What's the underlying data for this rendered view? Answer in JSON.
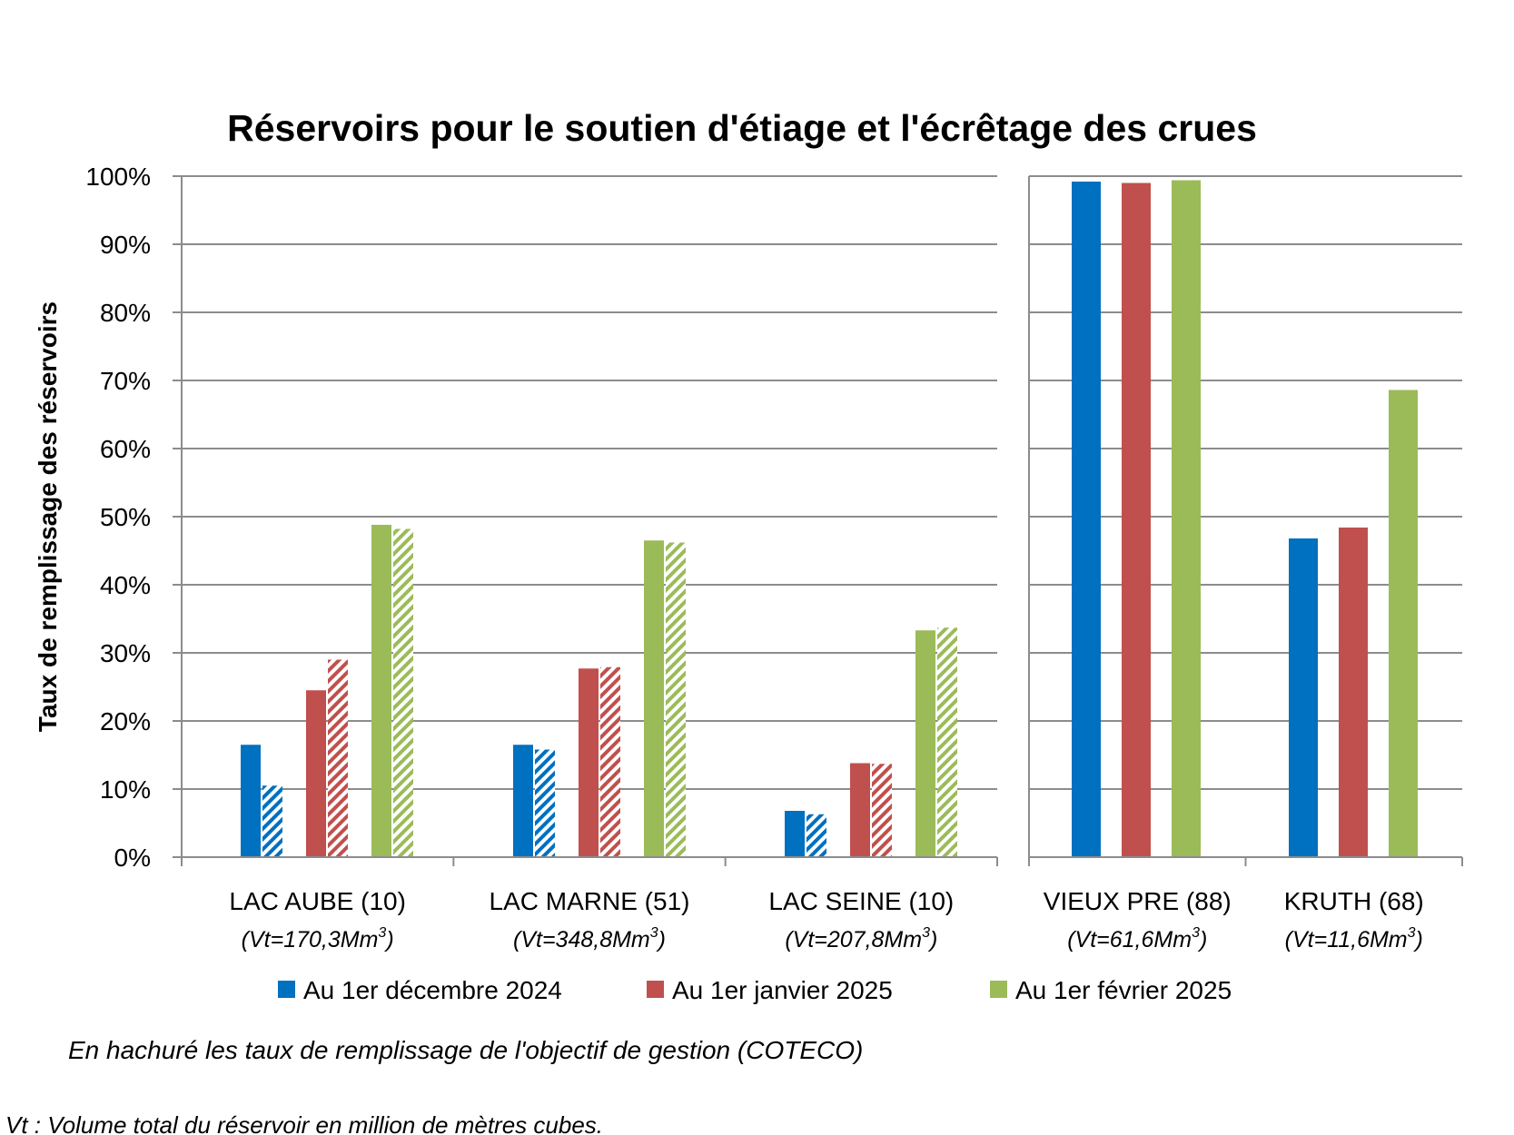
{
  "chart_data": {
    "type": "bar",
    "title": "Réservoirs pour le soutien d'étiage et l'écrêtage des crues",
    "ylabel": "Taux de remplissage des réservoirs",
    "ylim": [
      0,
      100
    ],
    "yticks": [
      "0%",
      "10%",
      "20%",
      "30%",
      "40%",
      "50%",
      "60%",
      "70%",
      "80%",
      "90%",
      "100%"
    ],
    "grid": true,
    "legend_position": "bottom",
    "series": [
      {
        "name": "Au 1er décembre 2024",
        "color": "#0070c0"
      },
      {
        "name": "Au 1er janvier 2025",
        "color": "#c0504d"
      },
      {
        "name": "Au 1er février 2025",
        "color": "#9bbb59"
      }
    ],
    "panels": [
      {
        "categories": [
          {
            "label": "LAC AUBE (10)",
            "vt_prefix": "(Vt=170,3Mm",
            "vt_suffix": ")",
            "actual": [
              16.5,
              24.5,
              48.8
            ],
            "objective": [
              10.5,
              29.0,
              48.2
            ]
          },
          {
            "label": "LAC MARNE (51)",
            "vt_prefix": "(Vt=348,8Mm",
            "vt_suffix": ")",
            "actual": [
              16.5,
              27.7,
              46.5
            ],
            "objective": [
              15.8,
              27.9,
              46.2
            ]
          },
          {
            "label": "LAC SEINE (10)",
            "vt_prefix": "(Vt=207,8Mm",
            "vt_suffix": ")",
            "actual": [
              6.8,
              13.8,
              33.3
            ],
            "objective": [
              6.3,
              13.7,
              33.7
            ]
          }
        ]
      },
      {
        "categories": [
          {
            "label": "VIEUX PRE (88)",
            "vt_prefix": "(Vt=61,6Mm",
            "vt_suffix": ")",
            "actual": [
              99.2,
              99.0,
              99.4
            ]
          },
          {
            "label": "KRUTH (68)",
            "vt_prefix": "(Vt=11,6Mm",
            "vt_suffix": ")",
            "actual": [
              46.8,
              48.4,
              68.6
            ]
          }
        ]
      }
    ],
    "vt_superscript": "3",
    "note": "En hachuré les taux de remplissage de l'objectif de gestion (COTECO)",
    "footnote": "Vt : Volume total du réservoir en million de mètres cubes."
  }
}
